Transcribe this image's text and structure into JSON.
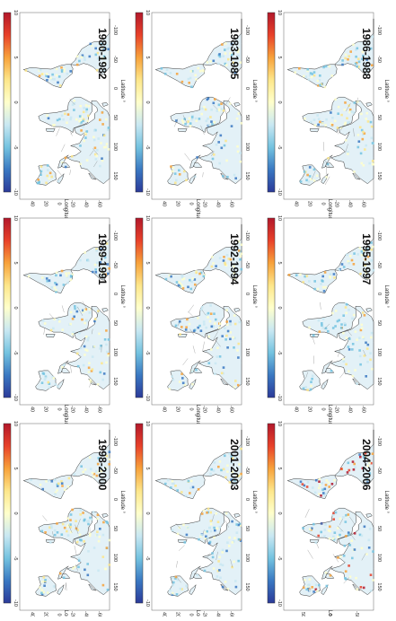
{
  "figure": {
    "orientation": "rotated 90° clockwise (landscape figure shown in portrait)",
    "map_type": "world choropleth anomaly maps",
    "colormap_colors": [
      "#b2182b",
      "#e8412a",
      "#f7a23b",
      "#fde68a",
      "#ffffcc",
      "#c9e8f2",
      "#74c3e0",
      "#3a78c2",
      "#2b3a99"
    ],
    "x_axis_label": "Latitude °",
    "y_axis_label": "Longitude °",
    "colorbar_ticks": [
      "10",
      "5",
      "0",
      "-5",
      "-10"
    ]
  },
  "panels": [
    {
      "period": "1980-1982",
      "x_ticks": [
        "-100",
        "-50",
        "0",
        "50",
        "100",
        "150"
      ],
      "y_ticks": [
        "40",
        "20",
        "0",
        "-20",
        "-40",
        "-60"
      ],
      "cbar_ticks": [
        "10",
        "5",
        "0",
        "-5",
        "-10"
      ]
    },
    {
      "period": "1983-1985",
      "x_ticks": [
        "-100",
        "-50",
        "0",
        "50",
        "100",
        "150"
      ],
      "y_ticks": [
        "40",
        "20",
        "0",
        "-20",
        "-40",
        "-60"
      ],
      "cbar_ticks": [
        "10",
        "5",
        "0",
        "-5",
        "-10"
      ]
    },
    {
      "period": "1986-1988",
      "x_ticks": [
        "-100",
        "-50",
        "0",
        "50",
        "100",
        "150"
      ],
      "y_ticks": [
        "40",
        "20",
        "0",
        "-20",
        "-40",
        "-60"
      ],
      "cbar_ticks": [
        "10",
        "5",
        "0",
        "-5",
        "-10"
      ]
    },
    {
      "period": "1989-1991",
      "x_ticks": [
        "-100",
        "-50",
        "0",
        "50",
        "100",
        "150"
      ],
      "y_ticks": [
        "40",
        "20",
        "0",
        "-20",
        "-40",
        "-60"
      ],
      "cbar_ticks": [
        "10",
        "5",
        "0",
        "-5",
        "-10"
      ]
    },
    {
      "period": "1992-1994",
      "x_ticks": [
        "-100",
        "-50",
        "0",
        "50",
        "100",
        "150"
      ],
      "y_ticks": [
        "40",
        "20",
        "0",
        "-20",
        "-40",
        "-60"
      ],
      "cbar_ticks": [
        "10",
        "5",
        "0",
        "-5",
        "-10"
      ]
    },
    {
      "period": "1995-1997",
      "x_ticks": [
        "-100",
        "-50",
        "0",
        "50",
        "100",
        "150"
      ],
      "y_ticks": [
        "40",
        "20",
        "0",
        "-20",
        "-40",
        "-60"
      ],
      "cbar_ticks": [
        "10",
        "5",
        "0",
        "-5",
        "-10"
      ]
    },
    {
      "period": "1998-2000",
      "x_ticks": [
        "-100",
        "-50",
        "0",
        "50",
        "100",
        "150"
      ],
      "y_ticks": [
        "40",
        "20",
        "0",
        "-20",
        "-40",
        "-60"
      ],
      "cbar_ticks": [
        "10",
        "5",
        "0",
        "-5",
        "-10"
      ]
    },
    {
      "period": "2001-2003",
      "x_ticks": [
        "-100",
        "-50",
        "0",
        "50",
        "100",
        "150"
      ],
      "y_ticks": [
        "40",
        "20",
        "0",
        "-20",
        "-40",
        "-60"
      ],
      "cbar_ticks": [
        "10",
        "5",
        "0",
        "-5",
        "-10"
      ]
    },
    {
      "period": "2004-2006",
      "x_ticks": [
        "-100",
        "-50",
        "0",
        "50",
        "100",
        "150"
      ],
      "y_ticks": [
        "50",
        "0",
        "-50"
      ],
      "cbar_ticks": [
        "10",
        "5",
        "0",
        "-5",
        "-10"
      ]
    }
  ]
}
